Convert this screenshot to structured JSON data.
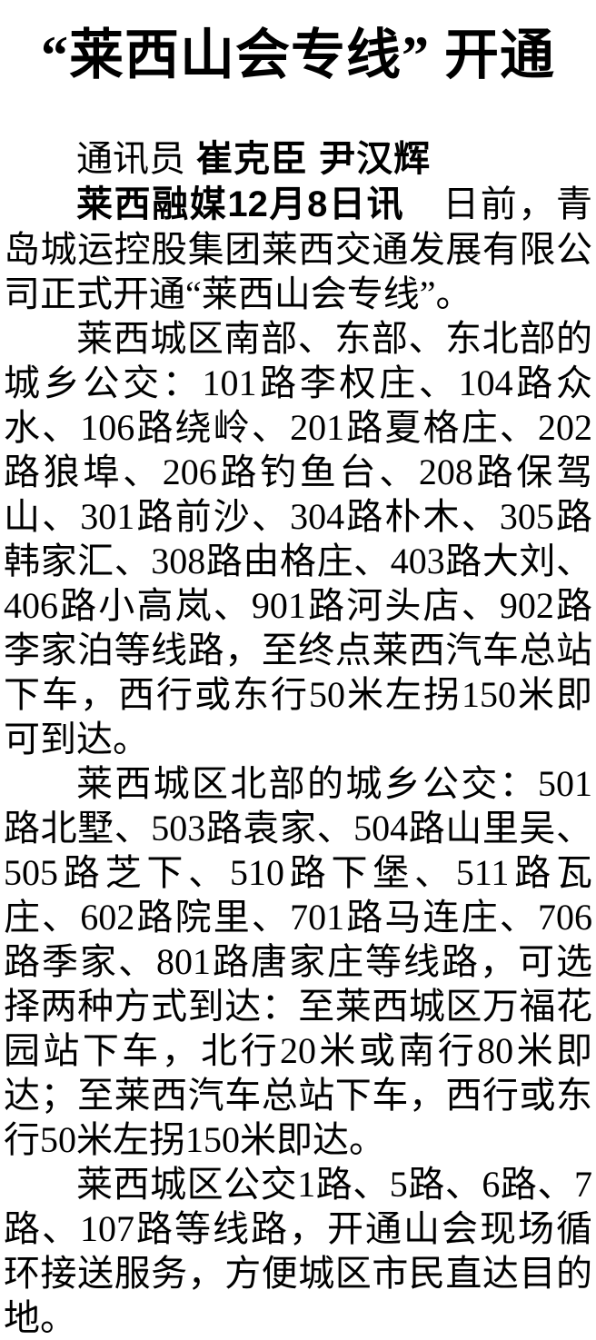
{
  "article": {
    "title": "“莱西山会专线” 开通",
    "byline": {
      "role": "通讯员",
      "names": "崔克臣 尹汉辉"
    },
    "dateline": "莱西融媒12月8日讯",
    "paragraphs": [
      {
        "text": "日前，青岛城运控股集团莱西交通发展有限公司正式开通“莱西山会专线”。"
      },
      {
        "text": "莱西城区南部、东部、东北部的城乡公交：101路李权庄、104路众水、106路绕岭、201路夏格庄、202路狼埠、206路钓鱼台、208路保驾山、301路前沙、304路朴木、305路韩家汇、308路由格庄、403路大刘、406路小高岚、901路河头店、902路李家泊等线路，至终点莱西汽车总站下车，西行或东行50米左拐150米即可到达。"
      },
      {
        "text": "莱西城区北部的城乡公交：501路北墅、503路袁家、504路山里吴、505路芝下、510路下堡、511路瓦庄、602路院里、701路马连庄、706路季家、801路唐家庄等线路，可选择两种方式到达：至莱西城区万福花园站下车，北行20米或南行80米即达；至莱西汽车总站下车，西行或东行50米左拐150米即达。"
      },
      {
        "text": "莱西城区公交1路、5路、6路、7路、107路等线路，开通山会现场循环接送服务，方便城区市民直达目的地。"
      }
    ]
  }
}
